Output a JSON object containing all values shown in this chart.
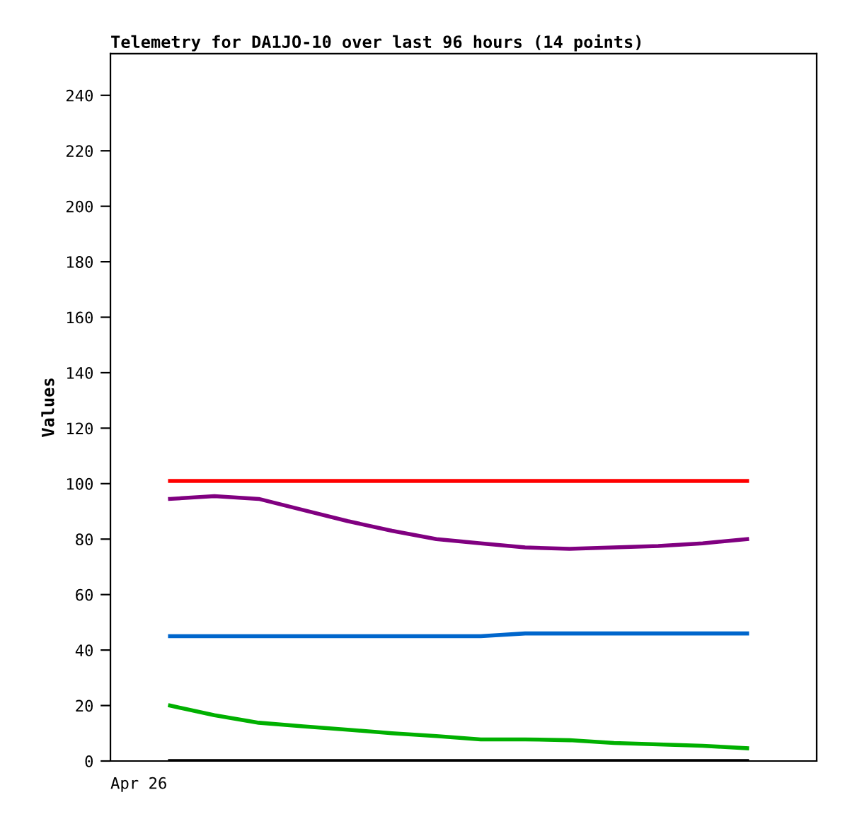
{
  "chart_data": {
    "type": "line",
    "title": "Telemetry for DA1JO-10 over last 96 hours (14 points)",
    "ylabel": "Values",
    "categories": [
      null,
      null,
      null,
      null,
      null,
      null,
      null,
      null,
      null,
      null,
      null,
      null,
      null,
      null
    ],
    "annotations": [
      "Apr 26"
    ],
    "tick_labels": "y",
    "ylim": [
      0,
      255
    ],
    "yticks": [
      0,
      20,
      40,
      60,
      80,
      100,
      120,
      140,
      160,
      180,
      200,
      220,
      240
    ],
    "grid": false,
    "legend": false,
    "marker": "none",
    "line_style": "solid",
    "series": [
      {
        "color": "#ff0000",
        "values": [
          101,
          101,
          101,
          101,
          101,
          101,
          101,
          101,
          101,
          101,
          101,
          101,
          101,
          101
        ]
      },
      {
        "color": "#800080",
        "values": [
          94.5,
          95.5,
          94.5,
          90.5,
          86.5,
          83,
          80,
          78.5,
          77,
          76.5,
          77,
          77.5,
          78.5,
          80
        ]
      },
      {
        "color": "#0066cc",
        "values": [
          45,
          45,
          45,
          45,
          45,
          45,
          45,
          45,
          46,
          46,
          46,
          46,
          46,
          46
        ]
      },
      {
        "color": "#00b000",
        "values": [
          20,
          16.5,
          13.8,
          12.5,
          11.3,
          10,
          9,
          7.8,
          7.8,
          7.5,
          6.5,
          6,
          5.5,
          4.6
        ]
      },
      {
        "color": "#000000",
        "values": [
          0,
          0,
          0,
          0,
          0,
          0,
          0,
          0,
          0,
          0,
          0,
          0,
          0,
          0
        ]
      }
    ]
  }
}
